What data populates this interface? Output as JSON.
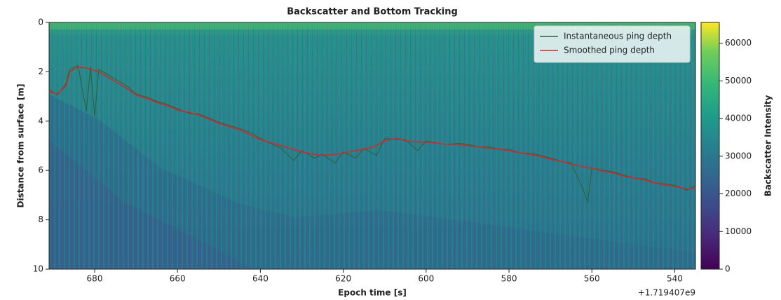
{
  "chart_data": {
    "type": "line",
    "title": "Backscatter and Bottom Tracking",
    "x_label": "Epoch time [s]",
    "x_offset_label": "+1.719407e9",
    "y_label": "Distance from surface [m]",
    "xlim": [
      691,
      535
    ],
    "xticks": [
      680,
      660,
      640,
      620,
      600,
      580,
      560,
      540
    ],
    "ylim": [
      10,
      0
    ],
    "yticks": [
      0,
      2,
      4,
      6,
      8,
      10
    ],
    "legend": "upper right",
    "x": [
      691,
      689,
      687,
      686,
      684,
      682,
      681,
      680,
      679,
      677,
      675,
      672,
      670,
      667,
      665,
      662,
      660,
      657,
      655,
      652,
      650,
      647,
      645,
      642,
      640,
      637,
      635,
      632,
      630,
      627,
      625,
      622,
      620,
      617,
      615,
      612,
      610,
      607,
      605,
      602,
      600,
      597,
      595,
      592,
      590,
      587,
      585,
      582,
      580,
      577,
      575,
      572,
      570,
      567,
      565,
      562,
      561,
      560,
      557,
      555,
      552,
      550,
      547,
      545,
      542,
      540,
      537,
      535
    ],
    "series": [
      {
        "name": "Instantaneous ping depth",
        "color": "#2f5f35",
        "values": [
          2.7,
          2.95,
          2.5,
          1.9,
          1.75,
          3.6,
          1.8,
          3.8,
          1.9,
          2.1,
          2.3,
          2.6,
          2.9,
          3.05,
          3.2,
          3.35,
          3.5,
          3.7,
          3.7,
          3.9,
          4.05,
          4.2,
          4.3,
          4.5,
          4.7,
          4.95,
          5.1,
          5.6,
          5.2,
          5.5,
          5.35,
          5.7,
          5.25,
          5.5,
          5.1,
          5.4,
          4.7,
          4.75,
          4.75,
          5.2,
          4.8,
          4.9,
          4.95,
          4.9,
          4.95,
          5.05,
          5.05,
          5.15,
          5.15,
          5.3,
          5.3,
          5.4,
          5.5,
          5.65,
          5.7,
          6.8,
          7.3,
          5.9,
          6.0,
          6.05,
          6.2,
          6.3,
          6.35,
          6.5,
          6.55,
          6.6,
          6.8,
          6.6
        ]
      },
      {
        "name": "Smoothed ping depth",
        "color": "#d62728",
        "values": [
          2.8,
          2.9,
          2.6,
          2.0,
          1.8,
          1.85,
          1.9,
          1.95,
          2.0,
          2.2,
          2.4,
          2.7,
          2.95,
          3.1,
          3.25,
          3.4,
          3.55,
          3.65,
          3.75,
          3.95,
          4.1,
          4.25,
          4.35,
          4.6,
          4.75,
          4.9,
          5.0,
          5.15,
          5.25,
          5.35,
          5.4,
          5.35,
          5.3,
          5.2,
          5.15,
          5.0,
          4.8,
          4.7,
          4.8,
          4.85,
          4.85,
          4.9,
          4.95,
          4.95,
          5.0,
          5.05,
          5.1,
          5.15,
          5.2,
          5.3,
          5.35,
          5.45,
          5.55,
          5.65,
          5.75,
          5.85,
          5.9,
          5.9,
          6.05,
          6.1,
          6.25,
          6.3,
          6.4,
          6.5,
          6.6,
          6.65,
          6.75,
          6.7
        ]
      }
    ],
    "colorbar": {
      "label": "Backscatter Intensity",
      "colormap": "viridis",
      "lim": [
        0,
        65535
      ],
      "ticks": [
        0,
        10000,
        20000,
        30000,
        40000,
        50000,
        60000
      ]
    }
  }
}
